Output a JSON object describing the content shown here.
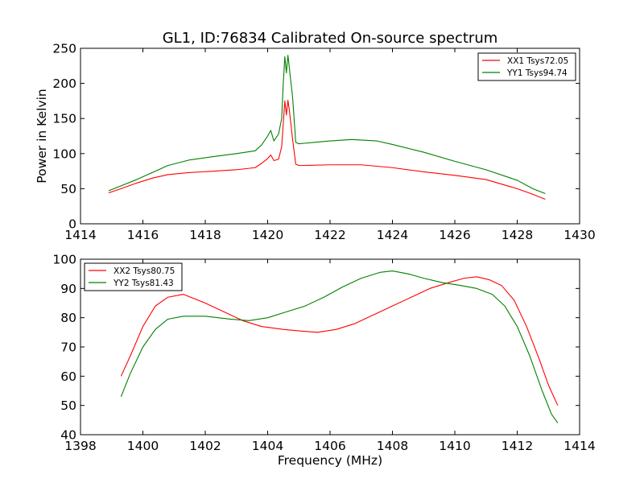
{
  "figure_title": "GL1, ID:76834 Calibrated On-source spectrum",
  "chart_data": [
    {
      "type": "line",
      "title": "GL1, ID:76834 Calibrated On-source spectrum",
      "xlabel": "",
      "ylabel": "Power in Kelvin",
      "xlim": [
        1414,
        1430
      ],
      "ylim": [
        0,
        250
      ],
      "xticks": [
        1414,
        1416,
        1418,
        1420,
        1422,
        1424,
        1426,
        1428,
        1430
      ],
      "yticks": [
        0,
        50,
        100,
        150,
        200,
        250
      ],
      "grid": false,
      "legend_position": "top-right",
      "series": [
        {
          "name": "XX1 Tsys72.05",
          "color": "#ff0000",
          "points": [
            [
              1414.9,
              44
            ],
            [
              1415.3,
              50
            ],
            [
              1415.8,
              58
            ],
            [
              1416.3,
              65
            ],
            [
              1416.8,
              70
            ],
            [
              1417.5,
              73
            ],
            [
              1418.3,
              75
            ],
            [
              1419.0,
              77
            ],
            [
              1419.6,
              80
            ],
            [
              1419.8,
              86
            ],
            [
              1420.0,
              93
            ],
            [
              1420.1,
              98
            ],
            [
              1420.2,
              90
            ],
            [
              1420.35,
              92
            ],
            [
              1420.45,
              110
            ],
            [
              1420.55,
              175
            ],
            [
              1420.6,
              155
            ],
            [
              1420.65,
              176
            ],
            [
              1420.7,
              160
            ],
            [
              1420.8,
              120
            ],
            [
              1420.9,
              85
            ],
            [
              1421.0,
              83
            ],
            [
              1422.0,
              84
            ],
            [
              1423.0,
              84
            ],
            [
              1424.0,
              80
            ],
            [
              1425.0,
              74
            ],
            [
              1426.0,
              69
            ],
            [
              1427.0,
              63
            ],
            [
              1428.0,
              50
            ],
            [
              1428.5,
              42
            ],
            [
              1428.9,
              35
            ]
          ]
        },
        {
          "name": "YY1 Tsys94.74",
          "color": "#008000",
          "points": [
            [
              1414.9,
              47
            ],
            [
              1415.3,
              54
            ],
            [
              1415.8,
              63
            ],
            [
              1416.3,
              73
            ],
            [
              1416.8,
              83
            ],
            [
              1417.5,
              91
            ],
            [
              1418.3,
              96
            ],
            [
              1419.0,
              100
            ],
            [
              1419.6,
              104
            ],
            [
              1419.8,
              112
            ],
            [
              1420.0,
              125
            ],
            [
              1420.1,
              133
            ],
            [
              1420.2,
              118
            ],
            [
              1420.35,
              128
            ],
            [
              1420.45,
              150
            ],
            [
              1420.5,
              200
            ],
            [
              1420.55,
              238
            ],
            [
              1420.6,
              215
            ],
            [
              1420.65,
              240
            ],
            [
              1420.7,
              220
            ],
            [
              1420.8,
              180
            ],
            [
              1420.9,
              116
            ],
            [
              1421.0,
              114
            ],
            [
              1422.0,
              118
            ],
            [
              1422.7,
              120
            ],
            [
              1423.5,
              118
            ],
            [
              1424.0,
              113
            ],
            [
              1425.0,
              102
            ],
            [
              1426.0,
              89
            ],
            [
              1427.0,
              77
            ],
            [
              1428.0,
              62
            ],
            [
              1428.5,
              50
            ],
            [
              1428.9,
              43
            ]
          ]
        }
      ]
    },
    {
      "type": "line",
      "title": "",
      "xlabel": "Frequency (MHz)",
      "ylabel": "",
      "xlim": [
        1398,
        1414
      ],
      "ylim": [
        40,
        100
      ],
      "xticks": [
        1398,
        1400,
        1402,
        1404,
        1406,
        1408,
        1410,
        1412,
        1414
      ],
      "yticks": [
        40,
        50,
        60,
        70,
        80,
        90,
        100
      ],
      "grid": false,
      "legend_position": "top-left",
      "series": [
        {
          "name": "XX2 Tsys80.75",
          "color": "#ff0000",
          "points": [
            [
              1399.3,
              60
            ],
            [
              1399.6,
              67
            ],
            [
              1400.0,
              77
            ],
            [
              1400.4,
              84
            ],
            [
              1400.8,
              87
            ],
            [
              1401.3,
              88
            ],
            [
              1402.0,
              85
            ],
            [
              1402.6,
              82
            ],
            [
              1403.2,
              79
            ],
            [
              1403.8,
              77
            ],
            [
              1404.5,
              76
            ],
            [
              1405.0,
              75.5
            ],
            [
              1405.6,
              75
            ],
            [
              1406.2,
              76
            ],
            [
              1406.8,
              78
            ],
            [
              1407.4,
              81
            ],
            [
              1408.0,
              84
            ],
            [
              1408.6,
              87
            ],
            [
              1409.2,
              90
            ],
            [
              1409.8,
              92
            ],
            [
              1410.3,
              93.5
            ],
            [
              1410.7,
              94
            ],
            [
              1411.1,
              93
            ],
            [
              1411.5,
              91
            ],
            [
              1411.9,
              86
            ],
            [
              1412.3,
              77
            ],
            [
              1412.7,
              66
            ],
            [
              1413.0,
              57
            ],
            [
              1413.3,
              50
            ]
          ]
        },
        {
          "name": "YY2 Tsys81.43",
          "color": "#008000",
          "points": [
            [
              1399.3,
              53
            ],
            [
              1399.6,
              61
            ],
            [
              1400.0,
              70
            ],
            [
              1400.4,
              76
            ],
            [
              1400.8,
              79.5
            ],
            [
              1401.3,
              80.5
            ],
            [
              1402.0,
              80.5
            ],
            [
              1402.8,
              79.5
            ],
            [
              1403.4,
              79
            ],
            [
              1404.0,
              80
            ],
            [
              1404.6,
              82
            ],
            [
              1405.2,
              84
            ],
            [
              1405.8,
              87
            ],
            [
              1406.4,
              90.5
            ],
            [
              1407.0,
              93.5
            ],
            [
              1407.6,
              95.5
            ],
            [
              1408.0,
              96
            ],
            [
              1408.5,
              95
            ],
            [
              1409.0,
              93.5
            ],
            [
              1409.6,
              92
            ],
            [
              1410.2,
              91
            ],
            [
              1410.7,
              90
            ],
            [
              1411.2,
              88
            ],
            [
              1411.6,
              84
            ],
            [
              1412.0,
              77
            ],
            [
              1412.4,
              67
            ],
            [
              1412.8,
              55
            ],
            [
              1413.1,
              47
            ],
            [
              1413.3,
              44
            ]
          ]
        }
      ]
    }
  ]
}
